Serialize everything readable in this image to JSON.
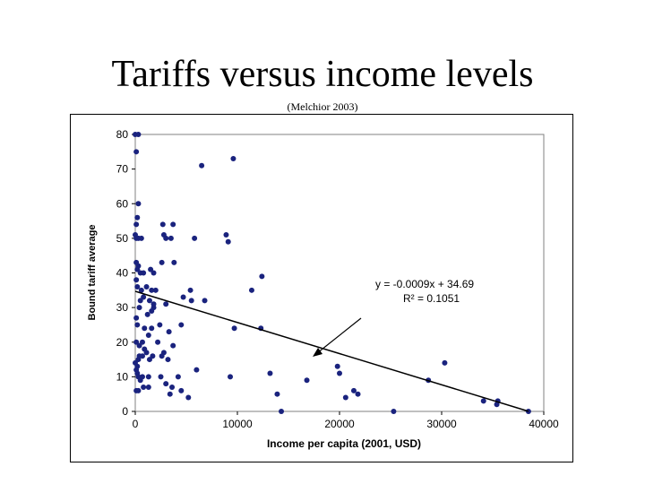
{
  "slide": {
    "title": "Tariffs versus income levels",
    "subtitle": "(Melchior 2003)"
  },
  "colors": {
    "point": "#1a237e",
    "trendline": "#000000",
    "plot_border": "#808080",
    "gridline": "#808080"
  },
  "chart_data": {
    "type": "scatter",
    "title": "",
    "xlabel": "Income per capita (2001, USD)",
    "ylabel": "Bound tariff average",
    "xlim": [
      0,
      40000
    ],
    "ylim": [
      0,
      80
    ],
    "x_ticks": [
      0,
      10000,
      20000,
      30000,
      40000
    ],
    "y_ticks": [
      0,
      10,
      20,
      30,
      40,
      50,
      60,
      70,
      80
    ],
    "grid": "none",
    "annotation": {
      "equation": "y = -0.0009x + 34.69",
      "r_squared": "R² = 0.1051"
    },
    "trendline": {
      "slope": -0.0009,
      "intercept": 34.69,
      "x_range": [
        0,
        38500
      ]
    },
    "points": [
      [
        0,
        80
      ],
      [
        300,
        80
      ],
      [
        100,
        75
      ],
      [
        6500,
        71
      ],
      [
        9600,
        73
      ],
      [
        300,
        60
      ],
      [
        200,
        56
      ],
      [
        100,
        54
      ],
      [
        2700,
        54
      ],
      [
        3700,
        54
      ],
      [
        0,
        51
      ],
      [
        100,
        50
      ],
      [
        300,
        50
      ],
      [
        600,
        50
      ],
      [
        2800,
        51
      ],
      [
        3000,
        50
      ],
      [
        3500,
        50
      ],
      [
        5800,
        50
      ],
      [
        8900,
        51
      ],
      [
        9100,
        49
      ],
      [
        100,
        43
      ],
      [
        300,
        42
      ],
      [
        2600,
        43
      ],
      [
        3800,
        43
      ],
      [
        200,
        41
      ],
      [
        500,
        40
      ],
      [
        800,
        40
      ],
      [
        1500,
        41
      ],
      [
        1800,
        40
      ],
      [
        100,
        38
      ],
      [
        12400,
        39
      ],
      [
        200,
        36
      ],
      [
        600,
        35
      ],
      [
        1100,
        36
      ],
      [
        1600,
        35
      ],
      [
        2000,
        35
      ],
      [
        4700,
        33
      ],
      [
        5400,
        35
      ],
      [
        11400,
        35
      ],
      [
        500,
        32
      ],
      [
        800,
        33
      ],
      [
        1400,
        32
      ],
      [
        1800,
        31
      ],
      [
        3000,
        31
      ],
      [
        6800,
        32
      ],
      [
        5500,
        32
      ],
      [
        100,
        27
      ],
      [
        400,
        30
      ],
      [
        1200,
        28
      ],
      [
        1600,
        29
      ],
      [
        1800,
        30
      ],
      [
        200,
        25
      ],
      [
        900,
        24
      ],
      [
        1300,
        22
      ],
      [
        1600,
        24
      ],
      [
        2400,
        25
      ],
      [
        3300,
        23
      ],
      [
        4500,
        25
      ],
      [
        9700,
        24
      ],
      [
        12300,
        24
      ],
      [
        100,
        20
      ],
      [
        400,
        19
      ],
      [
        700,
        20
      ],
      [
        900,
        18
      ],
      [
        2200,
        20
      ],
      [
        2800,
        17
      ],
      [
        3700,
        19
      ],
      [
        0,
        14
      ],
      [
        200,
        13
      ],
      [
        300,
        15
      ],
      [
        400,
        16
      ],
      [
        700,
        16
      ],
      [
        1100,
        17
      ],
      [
        1400,
        15
      ],
      [
        1700,
        16
      ],
      [
        2600,
        16
      ],
      [
        3200,
        15
      ],
      [
        19800,
        13
      ],
      [
        100,
        12
      ],
      [
        200,
        11
      ],
      [
        300,
        10
      ],
      [
        500,
        9
      ],
      [
        700,
        10
      ],
      [
        1300,
        10
      ],
      [
        2500,
        10
      ],
      [
        3000,
        8
      ],
      [
        3600,
        7
      ],
      [
        4200,
        10
      ],
      [
        6000,
        12
      ],
      [
        9300,
        10
      ],
      [
        13200,
        11
      ],
      [
        16800,
        9
      ],
      [
        20000,
        11
      ],
      [
        100,
        6
      ],
      [
        300,
        6
      ],
      [
        800,
        7
      ],
      [
        1300,
        7
      ],
      [
        3400,
        5
      ],
      [
        4500,
        6
      ],
      [
        5200,
        4
      ],
      [
        13900,
        5
      ],
      [
        20600,
        4
      ],
      [
        21400,
        6
      ],
      [
        21800,
        5
      ],
      [
        28700,
        9
      ],
      [
        30300,
        14
      ],
      [
        34100,
        3
      ],
      [
        35400,
        2
      ],
      [
        35500,
        3
      ],
      [
        14300,
        0
      ],
      [
        25300,
        0
      ],
      [
        38500,
        0
      ]
    ]
  }
}
